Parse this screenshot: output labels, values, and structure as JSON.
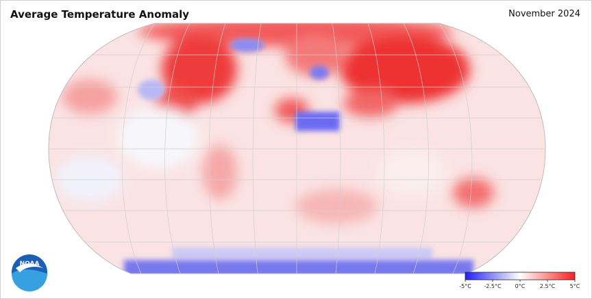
{
  "header": {
    "title": "Average Temperature Anomaly",
    "date": "November 2024"
  },
  "logo": {
    "text": "NOAA"
  },
  "colorbar": {
    "range": [
      -5,
      5
    ],
    "colors": [
      "#1f1fff",
      "#ffffff",
      "#ff1f1f"
    ],
    "ticks": [
      {
        "value": -5,
        "label": "-5°C"
      },
      {
        "value": -2.5,
        "label": "-2.5°C"
      },
      {
        "value": 0,
        "label": "0°C"
      },
      {
        "value": 2.5,
        "label": "2.5°C"
      },
      {
        "value": 5,
        "label": "5°C"
      }
    ]
  }
}
